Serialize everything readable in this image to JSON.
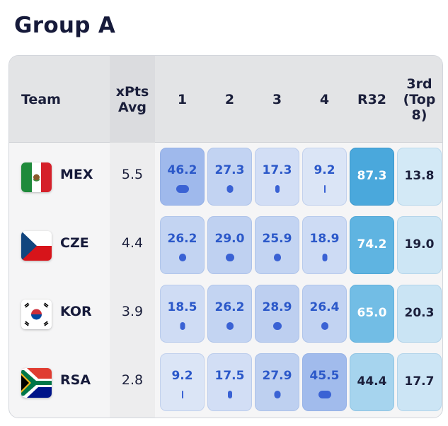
{
  "title": "Group A",
  "headers": {
    "team": "Team",
    "xpts": "xPts Avg",
    "p1": "1",
    "p2": "2",
    "p3": "3",
    "p4": "4",
    "r32": "R32",
    "third": "3rd (Top 8)"
  },
  "rows": [
    {
      "code": "MEX",
      "flag": "mexico-flag-icon",
      "xpts": "5.5",
      "p1": "46.2",
      "p2": "27.3",
      "p3": "17.3",
      "p4": "9.2",
      "r32": "87.3",
      "third": "13.8"
    },
    {
      "code": "CZE",
      "flag": "czechia-flag-icon",
      "xpts": "4.4",
      "p1": "26.2",
      "p2": "29.0",
      "p3": "25.9",
      "p4": "18.9",
      "r32": "74.2",
      "third": "19.0"
    },
    {
      "code": "KOR",
      "flag": "south-korea-flag-icon",
      "xpts": "3.9",
      "p1": "18.5",
      "p2": "26.2",
      "p3": "28.9",
      "p4": "26.4",
      "r32": "65.0",
      "third": "20.3"
    },
    {
      "code": "RSA",
      "flag": "south-africa-flag-icon",
      "xpts": "2.8",
      "p1": "9.2",
      "p2": "17.5",
      "p3": "27.9",
      "p4": "45.5",
      "r32": "44.4",
      "third": "17.7"
    }
  ],
  "colors": {
    "position_cell_low": "#d7e2f4",
    "position_cell_high": "#9fb9ec",
    "r32_high": "#4aa8dc",
    "r32_low": "#a9d6ef",
    "third_cell": "#cfe7f5",
    "pill": "#3a62d4"
  }
}
